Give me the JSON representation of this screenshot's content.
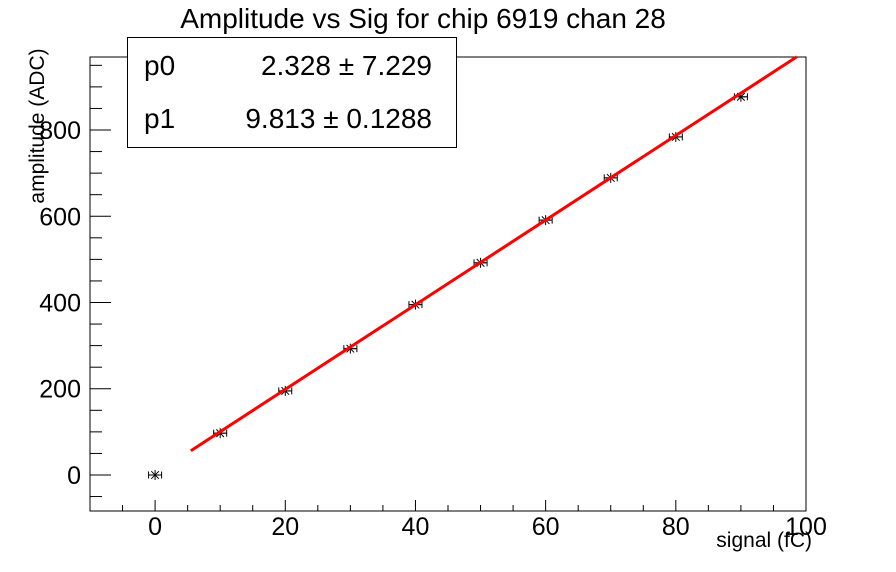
{
  "title": "Amplitude vs Sig for chip 6919 chan 28",
  "stats": {
    "rows": [
      {
        "name": "p0",
        "value": "2.328 ± 7.229"
      },
      {
        "name": "p1",
        "value": "9.813 ± 0.1288"
      }
    ]
  },
  "chart_data": {
    "type": "scatter",
    "title": "Amplitude vs Sig for chip 6919 chan 28",
    "xlabel": "signal (fC)",
    "ylabel": "amplitude (ADC)",
    "x": [
      0,
      10,
      20,
      30,
      40,
      50,
      60,
      70,
      80,
      90
    ],
    "y": [
      0,
      97,
      195,
      293,
      395,
      492,
      591,
      689,
      784,
      877
    ],
    "x_err": 1,
    "marker": "asterisk",
    "fit": {
      "p0": 2.328,
      "p1": 9.813,
      "x_min": 5.5,
      "x_max": 98.6,
      "color": "#ff0000"
    },
    "xlim": [
      -10,
      100
    ],
    "ylim": [
      -83.5,
      969.3
    ],
    "x_ticks": {
      "major": [
        0,
        20,
        40,
        60,
        80,
        100
      ],
      "labels": [
        "0",
        "20",
        "40",
        "60",
        "80",
        "100"
      ],
      "minor_step": 5
    },
    "y_ticks": {
      "major": [
        0,
        200,
        400,
        600,
        800
      ],
      "labels": [
        "0",
        "200",
        "400",
        "600",
        "800"
      ],
      "minor_step": 50
    },
    "grid": false,
    "legend": "none",
    "colors": {
      "axis": "#000000",
      "marker": "#000000",
      "fit_line": "#ff0000",
      "background": "#ffffff"
    }
  }
}
